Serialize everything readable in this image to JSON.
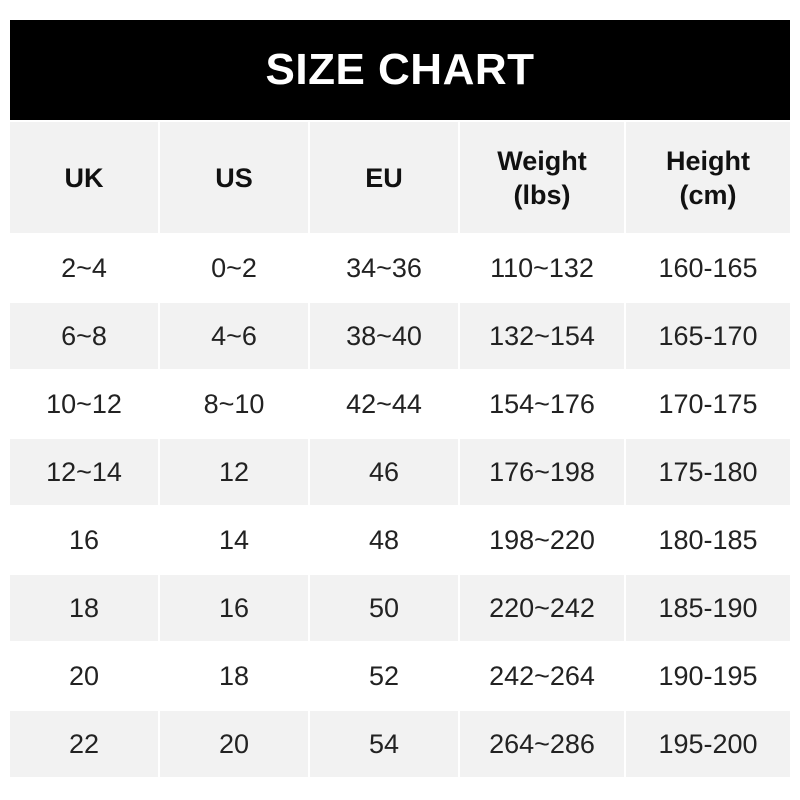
{
  "title": "SIZE CHART",
  "headers": [
    [
      "UK"
    ],
    [
      "US"
    ],
    [
      "EU"
    ],
    [
      "Weight",
      "(lbs)"
    ],
    [
      "Height",
      "(cm)"
    ]
  ],
  "rows": [
    [
      "2~4",
      "0~2",
      "34~36",
      "110~132",
      "160-165"
    ],
    [
      "6~8",
      "4~6",
      "38~40",
      "132~154",
      "165-170"
    ],
    [
      "10~12",
      "8~10",
      "42~44",
      "154~176",
      "170-175"
    ],
    [
      "12~14",
      "12",
      "46",
      "176~198",
      "175-180"
    ],
    [
      "16",
      "14",
      "48",
      "198~220",
      "180-185"
    ],
    [
      "18",
      "16",
      "50",
      "220~242",
      "185-190"
    ],
    [
      "20",
      "18",
      "52",
      "242~264",
      "190-195"
    ],
    [
      "22",
      "20",
      "54",
      "264~286",
      "195-200"
    ]
  ],
  "colors": {
    "title_bg": "#000000",
    "stripe": "#f2f2f2"
  }
}
